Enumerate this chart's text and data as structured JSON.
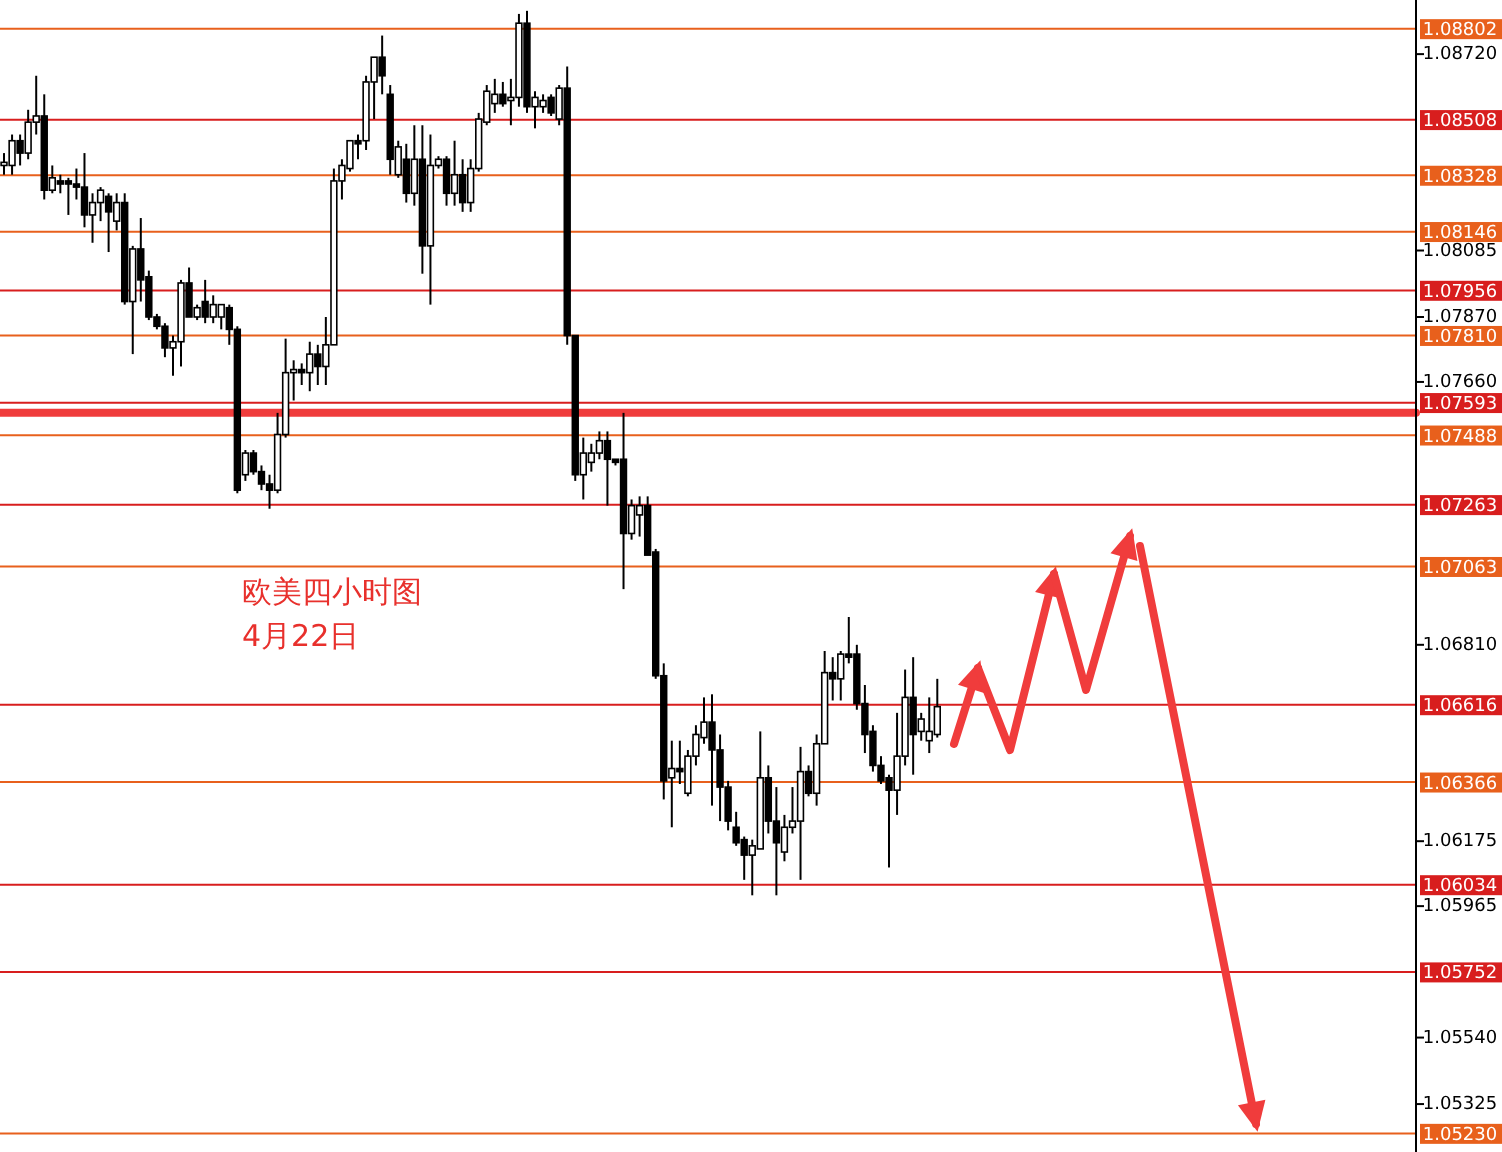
{
  "chart_data": {
    "type": "candlestick",
    "color": "#000000",
    "annotations": [
      "欧美四小时图",
      "4月22日"
    ],
    "ylim": [
      1.0517,
      1.08895
    ],
    "yticks": [
      {
        "value": 1.0872,
        "label": "1.08720"
      },
      {
        "value": 1.08085,
        "label": "1.08085"
      },
      {
        "value": 1.0787,
        "label": "1.07870"
      },
      {
        "value": 1.0766,
        "label": "1.07660"
      },
      {
        "value": 1.0681,
        "label": "1.06810"
      },
      {
        "value": 1.06175,
        "label": "1.06175"
      },
      {
        "value": 1.05965,
        "label": "1.05965"
      },
      {
        "value": 1.0554,
        "label": "1.05540"
      },
      {
        "value": 1.05325,
        "label": "1.05325"
      }
    ],
    "ref_lines": [
      {
        "axis": "y",
        "value": 1.08802,
        "label": "1.08802",
        "color": "#e8601c"
      },
      {
        "axis": "y",
        "value": 1.08508,
        "label": "1.08508",
        "color": "#d81e1e"
      },
      {
        "axis": "y",
        "value": 1.08328,
        "label": "1.08328",
        "color": "#e8601c"
      },
      {
        "axis": "y",
        "value": 1.08146,
        "label": "1.08146",
        "color": "#e8601c"
      },
      {
        "axis": "y",
        "value": 1.07956,
        "label": "1.07956",
        "color": "#d81e1e"
      },
      {
        "axis": "y",
        "value": 1.0781,
        "label": "1.07810",
        "color": "#e8601c"
      },
      {
        "axis": "y",
        "value": 1.07593,
        "label": "1.07593",
        "color": "#d81e1e"
      },
      {
        "axis": "y",
        "value": 1.07488,
        "label": "1.07488",
        "color": "#e8601c"
      },
      {
        "axis": "y",
        "value": 1.07263,
        "label": "1.07263",
        "color": "#d81e1e"
      },
      {
        "axis": "y",
        "value": 1.07063,
        "label": "1.07063",
        "color": "#e8601c"
      },
      {
        "axis": "y",
        "value": 1.06616,
        "label": "1.06616",
        "color": "#d81e1e"
      },
      {
        "axis": "y",
        "value": 1.06366,
        "label": "1.06366",
        "color": "#e8601c"
      },
      {
        "axis": "y",
        "value": 1.06034,
        "label": "1.06034",
        "color": "#d81e1e"
      },
      {
        "axis": "y",
        "value": 1.05752,
        "label": "1.05752",
        "color": "#d81e1e"
      },
      {
        "axis": "y",
        "value": 1.0523,
        "label": "1.05230",
        "color": "#e8601c"
      },
      {
        "axis": "y",
        "value": 1.0756,
        "color": "#f03c3c"
      }
    ],
    "categories": [
      null,
      null,
      null,
      null,
      null,
      null,
      null,
      null,
      null,
      null,
      null,
      null,
      null,
      null,
      null,
      null,
      null,
      null,
      null,
      null,
      null,
      null,
      null,
      null,
      null,
      null,
      null,
      null,
      null,
      null,
      null,
      null,
      null,
      null,
      null,
      null,
      null,
      null,
      null,
      null,
      null,
      null,
      null,
      null,
      null,
      null,
      null,
      null,
      null,
      null,
      null,
      null,
      null,
      null,
      null,
      null,
      null,
      null,
      null,
      null,
      null,
      null,
      null,
      null,
      null,
      null,
      null,
      null,
      null,
      null,
      null,
      null,
      null,
      null,
      null,
      null,
      null,
      null,
      null,
      null,
      null,
      null,
      null,
      null,
      null,
      null,
      null,
      null,
      null,
      null,
      null,
      null,
      null,
      null,
      null,
      null,
      null,
      null,
      null,
      null,
      null,
      null,
      null,
      null,
      null,
      null,
      null,
      null,
      null,
      null,
      null,
      null,
      null,
      null,
      null,
      null,
      null,
      null,
      null,
      null,
      null,
      null,
      null,
      null,
      null,
      null,
      null,
      null,
      null,
      null,
      null,
      null,
      null,
      null,
      null,
      null,
      null,
      null,
      null,
      null,
      null,
      null,
      null,
      null,
      null,
      null,
      null,
      null,
      null,
      null,
      null,
      null,
      null,
      null,
      null,
      null,
      null,
      null,
      null,
      null,
      null,
      null,
      null,
      null,
      null,
      null,
      null,
      null,
      null,
      null,
      null,
      null,
      null,
      null,
      null,
      null
    ],
    "ohlc": [
      [
        1.0836,
        1.084,
        1.0833,
        1.0837
      ],
      [
        1.0836,
        1.0846,
        1.0833,
        1.0844
      ],
      [
        1.0844,
        1.0846,
        1.0836,
        1.084
      ],
      [
        1.084,
        1.0854,
        1.0838,
        1.085
      ],
      [
        1.085,
        1.0865,
        1.0846,
        1.0852
      ],
      [
        1.0852,
        1.0859,
        1.0825,
        1.0828
      ],
      [
        1.0828,
        1.0836,
        1.0827,
        1.0832
      ],
      [
        1.0831,
        1.0833,
        1.0827,
        1.083
      ],
      [
        1.0831,
        1.0832,
        1.082,
        1.083
      ],
      [
        1.083,
        1.0835,
        1.0825,
        1.0829
      ],
      [
        1.0829,
        1.084,
        1.0816,
        1.082
      ],
      [
        1.082,
        1.0827,
        1.0811,
        1.0824
      ],
      [
        1.0824,
        1.0829,
        1.0818,
        1.0828
      ],
      [
        1.0826,
        1.0827,
        1.0808,
        1.0821
      ],
      [
        1.0818,
        1.0827,
        1.0815,
        1.0824
      ],
      [
        1.0824,
        1.0827,
        1.0791,
        1.0792
      ],
      [
        1.0792,
        1.081,
        1.0775,
        1.0809
      ],
      [
        1.0809,
        1.0819,
        1.0792,
        1.0799
      ],
      [
        1.08,
        1.0802,
        1.0786,
        1.0787
      ],
      [
        1.0787,
        1.0788,
        1.0783,
        1.0784
      ],
      [
        1.0784,
        1.0785,
        1.0774,
        1.0777
      ],
      [
        1.0777,
        1.0781,
        1.0768,
        1.0779
      ],
      [
        1.0779,
        1.0799,
        1.0771,
        1.0798
      ],
      [
        1.0798,
        1.0803,
        1.0787,
        1.0787
      ],
      [
        1.0787,
        1.0791,
        1.0786,
        1.079
      ],
      [
        1.0792,
        1.0799,
        1.0785,
        1.0787
      ],
      [
        1.0787,
        1.0794,
        1.0785,
        1.0791
      ],
      [
        1.0787,
        1.0791,
        1.0783,
        1.0791
      ],
      [
        1.079,
        1.0791,
        1.0778,
        1.0783
      ],
      [
        1.0783,
        1.0784,
        1.073,
        1.0731
      ],
      [
        1.0736,
        1.0744,
        1.0734,
        1.0743
      ],
      [
        1.0743,
        1.0744,
        1.0736,
        1.0737
      ],
      [
        1.0737,
        1.0739,
        1.0731,
        1.0733
      ],
      [
        1.0733,
        1.0736,
        1.0725,
        1.0731
      ],
      [
        1.0731,
        1.0756,
        1.073,
        1.0749
      ],
      [
        1.0749,
        1.078,
        1.0748,
        1.0769
      ],
      [
        1.0769,
        1.0773,
        1.076,
        1.077
      ],
      [
        1.077,
        1.0772,
        1.0765,
        1.0769
      ],
      [
        1.0769,
        1.0779,
        1.0763,
        1.0775
      ],
      [
        1.0775,
        1.0778,
        1.0765,
        1.0771
      ],
      [
        1.0771,
        1.0787,
        1.0765,
        1.0778
      ],
      [
        1.0778,
        1.0835,
        1.0778,
        1.0831
      ],
      [
        1.0831,
        1.0838,
        1.0825,
        1.0836
      ],
      [
        1.0835,
        1.0844,
        1.0834,
        1.0844
      ],
      [
        1.0844,
        1.0846,
        1.0838,
        1.0843
      ],
      [
        1.0844,
        1.0865,
        1.0841,
        1.0863
      ],
      [
        1.0863,
        1.0871,
        1.0851,
        1.0871
      ],
      [
        1.0871,
        1.0878,
        1.0859,
        1.0865
      ],
      [
        1.0859,
        1.0862,
        1.0833,
        1.0838
      ],
      [
        1.0833,
        1.0844,
        1.0832,
        1.0842
      ],
      [
        1.0838,
        1.0843,
        1.0824,
        1.0827
      ],
      [
        1.0827,
        1.0849,
        1.0823,
        1.0838
      ],
      [
        1.0838,
        1.0849,
        1.0801,
        1.081
      ],
      [
        1.081,
        1.0846,
        1.0791,
        1.0836
      ],
      [
        1.0836,
        1.0839,
        1.0835,
        1.0838
      ],
      [
        1.0838,
        1.0839,
        1.0823,
        1.0827
      ],
      [
        1.0827,
        1.0844,
        1.0823,
        1.0833
      ],
      [
        1.0833,
        1.0838,
        1.0821,
        1.0824
      ],
      [
        1.0824,
        1.0838,
        1.0821,
        1.0835
      ],
      [
        1.0835,
        1.0853,
        1.0834,
        1.0851
      ],
      [
        1.085,
        1.0862,
        1.0849,
        1.086
      ],
      [
        1.0856,
        1.0864,
        1.0853,
        1.0859
      ],
      [
        1.0859,
        1.0863,
        1.0855,
        1.0856
      ],
      [
        1.0857,
        1.0864,
        1.0849,
        1.0858
      ],
      [
        1.0858,
        1.0885,
        1.0855,
        1.0882
      ],
      [
        1.0882,
        1.0886,
        1.0853,
        1.0855
      ],
      [
        1.0855,
        1.086,
        1.0848,
        1.0858
      ],
      [
        1.0855,
        1.0859,
        1.0853,
        1.0857
      ],
      [
        1.0858,
        1.0859,
        1.0852,
        1.0853
      ],
      [
        1.0851,
        1.0862,
        1.0849,
        1.0861
      ],
      [
        1.0861,
        1.0868,
        1.0778,
        1.0781
      ],
      [
        1.0781,
        1.0781,
        1.0734,
        1.0736
      ],
      [
        1.0736,
        1.0748,
        1.0728,
        1.0743
      ],
      [
        1.074,
        1.0746,
        1.0737,
        1.0743
      ],
      [
        1.0743,
        1.075,
        1.0741,
        1.0747
      ],
      [
        1.0747,
        1.075,
        1.0726,
        1.0741
      ],
      [
        1.0741,
        1.0741,
        1.0739,
        1.074
      ],
      [
        1.0741,
        1.0756,
        1.0699,
        1.0717
      ],
      [
        1.0717,
        1.0728,
        1.0715,
        1.0726
      ],
      [
        1.0723,
        1.0729,
        1.0716,
        1.0726
      ],
      [
        1.0726,
        1.0729,
        1.071,
        1.071
      ],
      [
        1.0711,
        1.0712,
        1.067,
        1.0671
      ],
      [
        1.0671,
        1.0675,
        1.0631,
        1.0637
      ],
      [
        1.0638,
        1.065,
        1.0622,
        1.0641
      ],
      [
        1.0641,
        1.065,
        1.0636,
        1.064
      ],
      [
        1.0633,
        1.0647,
        1.0632,
        1.0645
      ],
      [
        1.0645,
        1.0655,
        1.0642,
        1.0652
      ],
      [
        1.0651,
        1.0664,
        1.0649,
        1.0656
      ],
      [
        1.0656,
        1.0665,
        1.0629,
        1.0647
      ],
      [
        1.0647,
        1.0652,
        1.0624,
        1.0635
      ],
      [
        1.0635,
        1.0637,
        1.0621,
        1.0624
      ],
      [
        1.0622,
        1.0627,
        1.0616,
        1.0617
      ],
      [
        1.0618,
        1.0619,
        1.0605,
        1.0613
      ],
      [
        1.0613,
        1.0618,
        1.06,
        1.0616
      ],
      [
        1.0615,
        1.0653,
        1.0615,
        1.0638
      ],
      [
        1.0638,
        1.0642,
        1.062,
        1.0624
      ],
      [
        1.0624,
        1.0635,
        1.06,
        1.0617
      ],
      [
        1.0614,
        1.0626,
        1.0611,
        1.0622
      ],
      [
        1.0622,
        1.0635,
        1.062,
        1.0624
      ],
      [
        1.0624,
        1.0648,
        1.0605,
        1.064
      ],
      [
        1.064,
        1.0642,
        1.0632,
        1.0633
      ],
      [
        1.0633,
        1.0652,
        1.0629,
        1.0649
      ],
      [
        1.0649,
        1.0679,
        1.0649,
        1.0672
      ],
      [
        1.0672,
        1.0677,
        1.0663,
        1.067
      ],
      [
        1.067,
        1.0679,
        1.0663,
        1.0678
      ],
      [
        1.0678,
        1.069,
        1.0675,
        1.0677
      ],
      [
        1.0678,
        1.0681,
        1.066,
        1.0662
      ],
      [
        1.0662,
        1.0668,
        1.0646,
        1.0652
      ],
      [
        1.0653,
        1.0655,
        1.064,
        1.0642
      ],
      [
        1.0642,
        1.0645,
        1.0636,
        1.0637
      ],
      [
        1.0638,
        1.0639,
        1.0609,
        1.0634
      ],
      [
        1.0634,
        1.0659,
        1.0626,
        1.0645
      ],
      [
        1.0645,
        1.0673,
        1.0642,
        1.0664
      ],
      [
        1.0664,
        1.0677,
        1.0639,
        1.0652
      ],
      [
        1.0653,
        1.0659,
        1.065,
        1.0657
      ],
      [
        1.065,
        1.0664,
        1.0646,
        1.0653
      ],
      [
        1.0652,
        1.067,
        1.0651,
        1.0661
      ],
      null,
      null,
      null,
      null,
      null,
      null,
      null,
      null,
      null,
      null,
      null,
      null,
      null,
      null,
      null,
      null,
      null,
      null,
      null,
      null,
      null,
      null,
      null,
      null,
      null,
      null,
      null,
      null,
      null,
      null,
      null,
      null,
      null,
      null,
      null,
      null,
      null,
      null,
      null,
      null,
      null,
      null,
      null,
      null,
      null,
      null,
      null,
      null,
      null,
      null,
      null,
      null,
      null,
      null,
      null,
      null,
      null,
      null,
      null
    ]
  }
}
